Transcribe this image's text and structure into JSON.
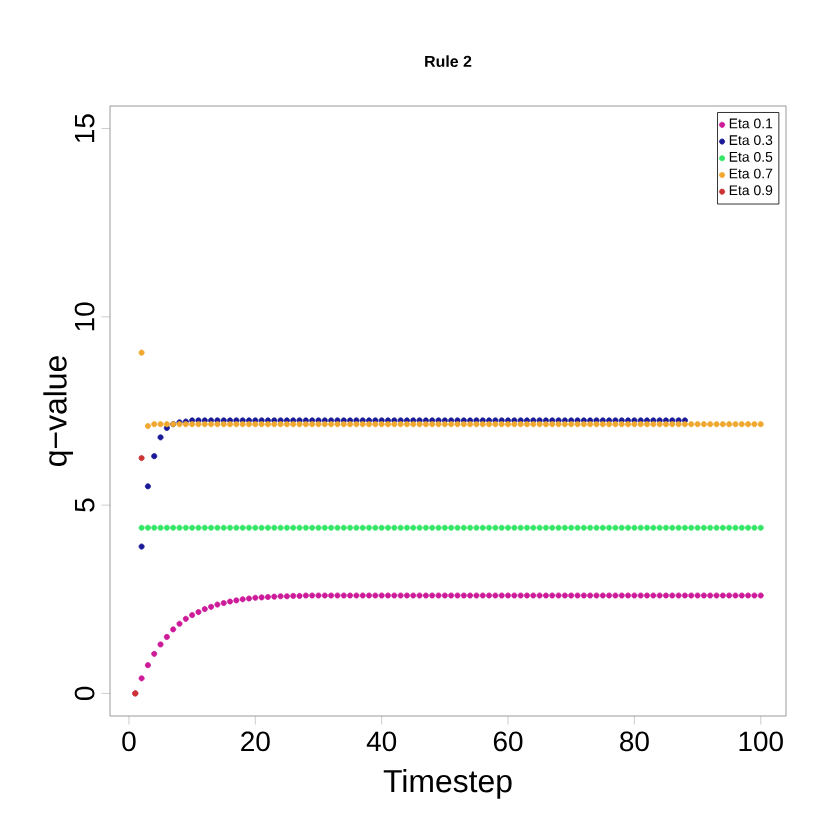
{
  "chart_data": {
    "type": "scatter",
    "title": "Rule 2",
    "xlabel": "Timestep",
    "ylabel": "q−value",
    "x": [
      1,
      2,
      3,
      4,
      5,
      6,
      7,
      8,
      9,
      10,
      11,
      12,
      13,
      14,
      15,
      16,
      17,
      18,
      19,
      20,
      21,
      22,
      23,
      24,
      25,
      26,
      27,
      28,
      29,
      30,
      31,
      32,
      33,
      34,
      35,
      36,
      37,
      38,
      39,
      40,
      41,
      42,
      43,
      44,
      45,
      46,
      47,
      48,
      49,
      50,
      51,
      52,
      53,
      54,
      55,
      56,
      57,
      58,
      59,
      60,
      61,
      62,
      63,
      64,
      65,
      66,
      67,
      68,
      69,
      70,
      71,
      72,
      73,
      74,
      75,
      76,
      77,
      78,
      79,
      80,
      81,
      82,
      83,
      84,
      85,
      86,
      87,
      88,
      89,
      90,
      91,
      92,
      93,
      94,
      95,
      96,
      97,
      98,
      99,
      100
    ],
    "series": [
      {
        "name": "Eta 0.1",
        "color": "#cc1a99",
        "values": [
          0,
          0.4,
          0.75,
          1.05,
          1.3,
          1.5,
          1.7,
          1.85,
          1.98,
          2.08,
          2.16,
          2.24,
          2.3,
          2.36,
          2.4,
          2.44,
          2.47,
          2.5,
          2.52,
          2.54,
          2.55,
          2.56,
          2.57,
          2.58,
          2.58,
          2.59,
          2.59,
          2.6,
          2.6,
          2.6,
          2.6,
          2.6,
          2.6,
          2.6,
          2.6,
          2.6,
          2.6,
          2.6,
          2.6,
          2.6,
          2.6,
          2.6,
          2.6,
          2.6,
          2.6,
          2.6,
          2.6,
          2.6,
          2.6,
          2.6,
          2.6,
          2.6,
          2.6,
          2.6,
          2.6,
          2.6,
          2.6,
          2.6,
          2.6,
          2.6,
          2.6,
          2.6,
          2.6,
          2.6,
          2.6,
          2.6,
          2.6,
          2.6,
          2.6,
          2.6,
          2.6,
          2.6,
          2.6,
          2.6,
          2.6,
          2.6,
          2.6,
          2.6,
          2.6,
          2.6,
          2.6,
          2.6,
          2.6,
          2.6,
          2.6,
          2.6,
          2.6,
          2.6,
          2.6,
          2.6,
          2.6,
          2.6,
          2.6,
          2.6,
          2.6,
          2.6,
          2.6,
          2.6,
          2.6,
          2.6
        ]
      },
      {
        "name": "Eta 0.3",
        "color": "#1a1a99",
        "values": [
          null,
          3.9,
          5.5,
          6.3,
          6.8,
          7.05,
          7.15,
          7.2,
          7.22,
          7.25,
          7.25,
          7.25,
          7.25,
          7.25,
          7.25,
          7.25,
          7.25,
          7.25,
          7.25,
          7.25,
          7.25,
          7.25,
          7.25,
          7.25,
          7.25,
          7.25,
          7.25,
          7.25,
          7.25,
          7.25,
          7.25,
          7.25,
          7.25,
          7.25,
          7.25,
          7.25,
          7.25,
          7.25,
          7.25,
          7.25,
          7.25,
          7.25,
          7.25,
          7.25,
          7.25,
          7.25,
          7.25,
          7.25,
          7.25,
          7.25,
          7.25,
          7.25,
          7.25,
          7.25,
          7.25,
          7.25,
          7.25,
          7.25,
          7.25,
          7.25,
          7.25,
          7.25,
          7.25,
          7.25,
          7.25,
          7.25,
          7.25,
          7.25,
          7.25,
          7.25,
          7.25,
          7.25,
          7.25,
          7.25,
          7.25,
          7.25,
          7.25,
          7.25,
          7.25,
          7.25,
          7.25,
          7.25,
          7.25,
          7.25,
          7.25,
          7.25,
          7.25,
          7.25,
          null,
          null,
          null,
          null,
          null,
          null,
          null,
          null,
          null,
          null,
          null,
          null
        ]
      },
      {
        "name": "Eta 0.5",
        "color": "#33e666",
        "values": [
          null,
          4.4,
          4.4,
          4.4,
          4.4,
          4.4,
          4.4,
          4.4,
          4.4,
          4.4,
          4.4,
          4.4,
          4.4,
          4.4,
          4.4,
          4.4,
          4.4,
          4.4,
          4.4,
          4.4,
          4.4,
          4.4,
          4.4,
          4.4,
          4.4,
          4.4,
          4.4,
          4.4,
          4.4,
          4.4,
          4.4,
          4.4,
          4.4,
          4.4,
          4.4,
          4.4,
          4.4,
          4.4,
          4.4,
          4.4,
          4.4,
          4.4,
          4.4,
          4.4,
          4.4,
          4.4,
          4.4,
          4.4,
          4.4,
          4.4,
          4.4,
          4.4,
          4.4,
          4.4,
          4.4,
          4.4,
          4.4,
          4.4,
          4.4,
          4.4,
          4.4,
          4.4,
          4.4,
          4.4,
          4.4,
          4.4,
          4.4,
          4.4,
          4.4,
          4.4,
          4.4,
          4.4,
          4.4,
          4.4,
          4.4,
          4.4,
          4.4,
          4.4,
          4.4,
          4.4,
          4.4,
          4.4,
          4.4,
          4.4,
          4.4,
          4.4,
          4.4,
          4.4,
          4.4,
          4.4,
          4.4,
          4.4,
          4.4,
          4.4,
          4.4,
          4.4,
          4.4,
          4.4,
          4.4,
          4.4
        ]
      },
      {
        "name": "Eta 0.7",
        "color": "#f0a830",
        "values": [
          null,
          9.05,
          7.1,
          7.15,
          7.15,
          7.15,
          7.15,
          7.15,
          7.15,
          7.15,
          7.15,
          7.15,
          7.15,
          7.15,
          7.15,
          7.15,
          7.15,
          7.15,
          7.15,
          7.15,
          7.15,
          7.15,
          7.15,
          7.15,
          7.15,
          7.15,
          7.15,
          7.15,
          7.15,
          7.15,
          7.15,
          7.15,
          7.15,
          7.15,
          7.15,
          7.15,
          7.15,
          7.15,
          7.15,
          7.15,
          7.15,
          7.15,
          7.15,
          7.15,
          7.15,
          7.15,
          7.15,
          7.15,
          7.15,
          7.15,
          7.15,
          7.15,
          7.15,
          7.15,
          7.15,
          7.15,
          7.15,
          7.15,
          7.15,
          7.15,
          7.15,
          7.15,
          7.15,
          7.15,
          7.15,
          7.15,
          7.15,
          7.15,
          7.15,
          7.15,
          7.15,
          7.15,
          7.15,
          7.15,
          7.15,
          7.15,
          7.15,
          7.15,
          7.15,
          7.15,
          7.15,
          7.15,
          7.15,
          7.15,
          7.15,
          7.15,
          7.15,
          7.15,
          7.15,
          7.15,
          7.15,
          7.15,
          7.15,
          7.15,
          7.15,
          7.15,
          7.15,
          7.15,
          7.15,
          7.15
        ]
      },
      {
        "name": "Eta 0.9",
        "color": "#cc3333",
        "values": [
          0,
          6.25,
          null,
          null,
          null,
          null,
          null,
          null,
          null,
          null,
          null,
          null,
          null,
          null,
          null,
          null,
          null,
          null,
          null,
          null,
          null,
          null,
          null,
          null,
          null,
          null,
          null,
          null,
          null,
          null,
          null,
          null,
          null,
          null,
          null,
          null,
          null,
          null,
          null,
          null,
          null,
          null,
          null,
          null,
          null,
          null,
          null,
          null,
          null,
          null,
          null,
          null,
          null,
          null,
          null,
          null,
          null,
          null,
          null,
          null,
          null,
          null,
          null,
          null,
          null,
          null,
          null,
          null,
          null,
          null,
          null,
          null,
          null,
          null,
          null,
          null,
          null,
          null,
          null,
          null,
          null,
          null,
          null,
          null,
          null,
          null,
          null,
          null,
          null,
          null,
          null,
          null,
          null,
          null,
          null,
          null,
          null,
          null,
          null,
          null
        ]
      }
    ],
    "xlim": [
      -3,
      104
    ],
    "ylim": [
      -0.6,
      15.6
    ],
    "xticks": [
      0,
      20,
      40,
      60,
      80,
      100
    ],
    "yticks": [
      0,
      5,
      10,
      15
    ],
    "marker": "circle",
    "legend": "top right",
    "grid": false
  }
}
